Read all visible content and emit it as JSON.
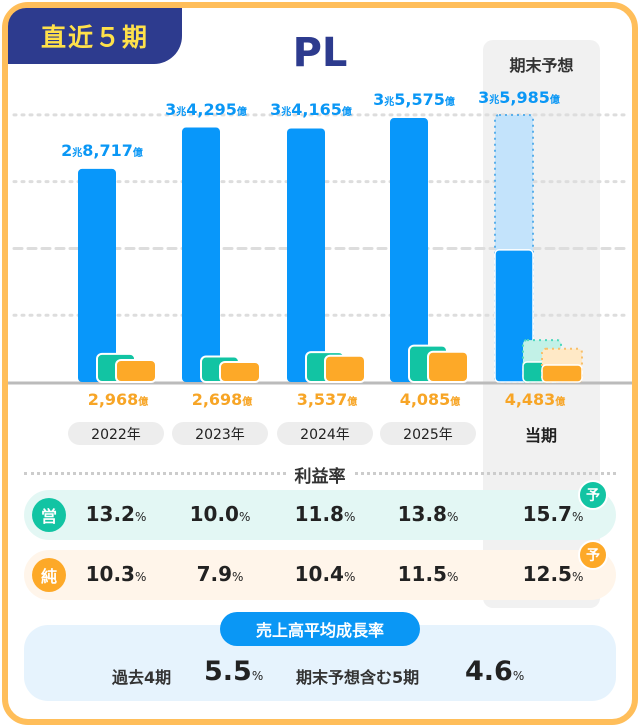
{
  "tag": "直近５期",
  "title": "PL",
  "forecast_header": "期末予想",
  "chart_data": {
    "type": "bar",
    "categories": [
      "2022年",
      "2023年",
      "2024年",
      "2025年",
      "当期"
    ],
    "unit": "億",
    "series": [
      {
        "key": "sales",
        "values": [
          28717,
          34295,
          34165,
          35575,
          35985
        ],
        "labels": [
          "2兆8,717億",
          "3兆4,295億",
          "3兆4,165億",
          "3兆5,575億",
          "3兆5,985億"
        ],
        "color": "#0897FA"
      },
      {
        "key": "operating_profit",
        "values": [
          3791,
          3430,
          4031,
          4909,
          5650
        ],
        "color": "#12C4A3"
      },
      {
        "key": "net_profit",
        "values": [
          2968,
          2698,
          3537,
          4085,
          4483
        ],
        "labels": [
          "2,968億",
          "2,698億",
          "3,537億",
          "4,085億",
          "4,483億"
        ],
        "color": "#FDA928"
      }
    ],
    "forecast_index": 4,
    "forecast_sales_progress": 17800,
    "forecast_colors": {
      "sales": "#C3E3FB",
      "operating_profit": "#C2F1E7",
      "net_profit": "#FFE9C6"
    },
    "grid": true
  },
  "margins": {
    "title": "利益率",
    "operating": {
      "badge": "営",
      "color": "#12C4A3",
      "bg": "#E3F7F4",
      "values": [
        "13.2",
        "10.0",
        "11.8",
        "13.8",
        "15.7"
      ]
    },
    "net": {
      "badge": "純",
      "color": "#FDA928",
      "bg": "#FFF5EA",
      "values": [
        "10.3",
        "7.9",
        "10.4",
        "11.5",
        "12.5"
      ]
    },
    "unit": "%",
    "forecast_badge": "予"
  },
  "growth": {
    "title": "売上高平均成長率",
    "past_label": "過去4期",
    "past_value": "5.5",
    "incl_label": "期末予想含む5期",
    "incl_value": "4.6",
    "unit": "%"
  }
}
